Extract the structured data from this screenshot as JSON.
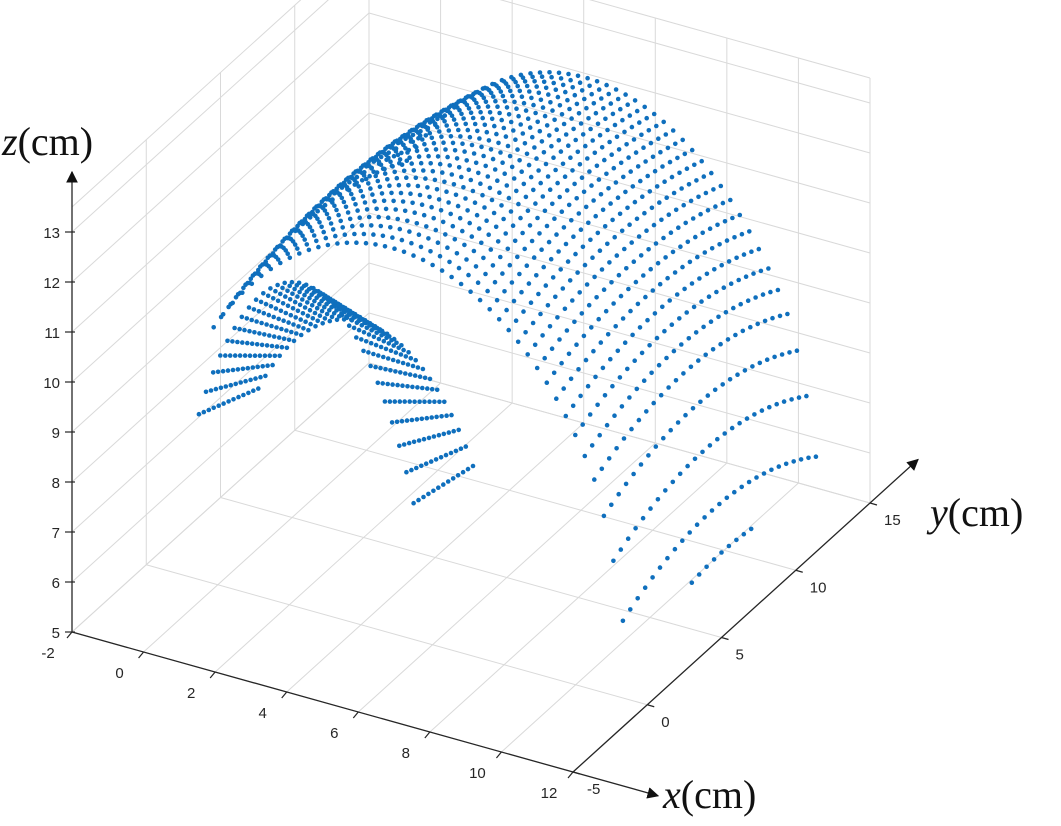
{
  "chart_data": {
    "type": "scatter",
    "title": "",
    "projection": "3d",
    "grid": true,
    "marker_color": "#0f6fbd",
    "axes": {
      "x": {
        "label_var": "x",
        "label_unit": "(cm)",
        "range": [
          -2,
          12
        ],
        "ticks": [
          -2,
          0,
          2,
          4,
          6,
          8,
          10,
          12
        ]
      },
      "y": {
        "label_var": "y",
        "label_unit": "(cm)",
        "range": [
          -5,
          15
        ],
        "ticks": [
          -5,
          0,
          5,
          10,
          15
        ]
      },
      "z": {
        "label_var": "z",
        "label_unit": "(cm)",
        "range": [
          5,
          13.5
        ],
        "ticks": [
          5,
          6,
          7,
          8,
          9,
          10,
          11,
          12,
          13
        ]
      }
    },
    "surface": {
      "description_shape": "arch",
      "x_range": [
        0.3,
        12
      ],
      "y_range": [
        -2,
        12
      ],
      "z_peak": 13.3,
      "z_base": 7.6,
      "arch_center_x": 5.3,
      "arch_half_width_x": 6.5,
      "sample_points": [
        {
          "x": 0.3,
          "y": 2,
          "z": 7.7
        },
        {
          "x": 1.5,
          "y": 5,
          "z": 10.2
        },
        {
          "x": 3,
          "y": 8,
          "z": 12.4
        },
        {
          "x": 5.3,
          "y": 10,
          "z": 13.3
        },
        {
          "x": 7.5,
          "y": 12,
          "z": 12.4
        },
        {
          "x": 10,
          "y": 8,
          "z": 10.0
        },
        {
          "x": 12,
          "y": 6,
          "z": 6.7
        },
        {
          "x": 5.5,
          "y": -2,
          "z": 7.8
        }
      ]
    }
  }
}
